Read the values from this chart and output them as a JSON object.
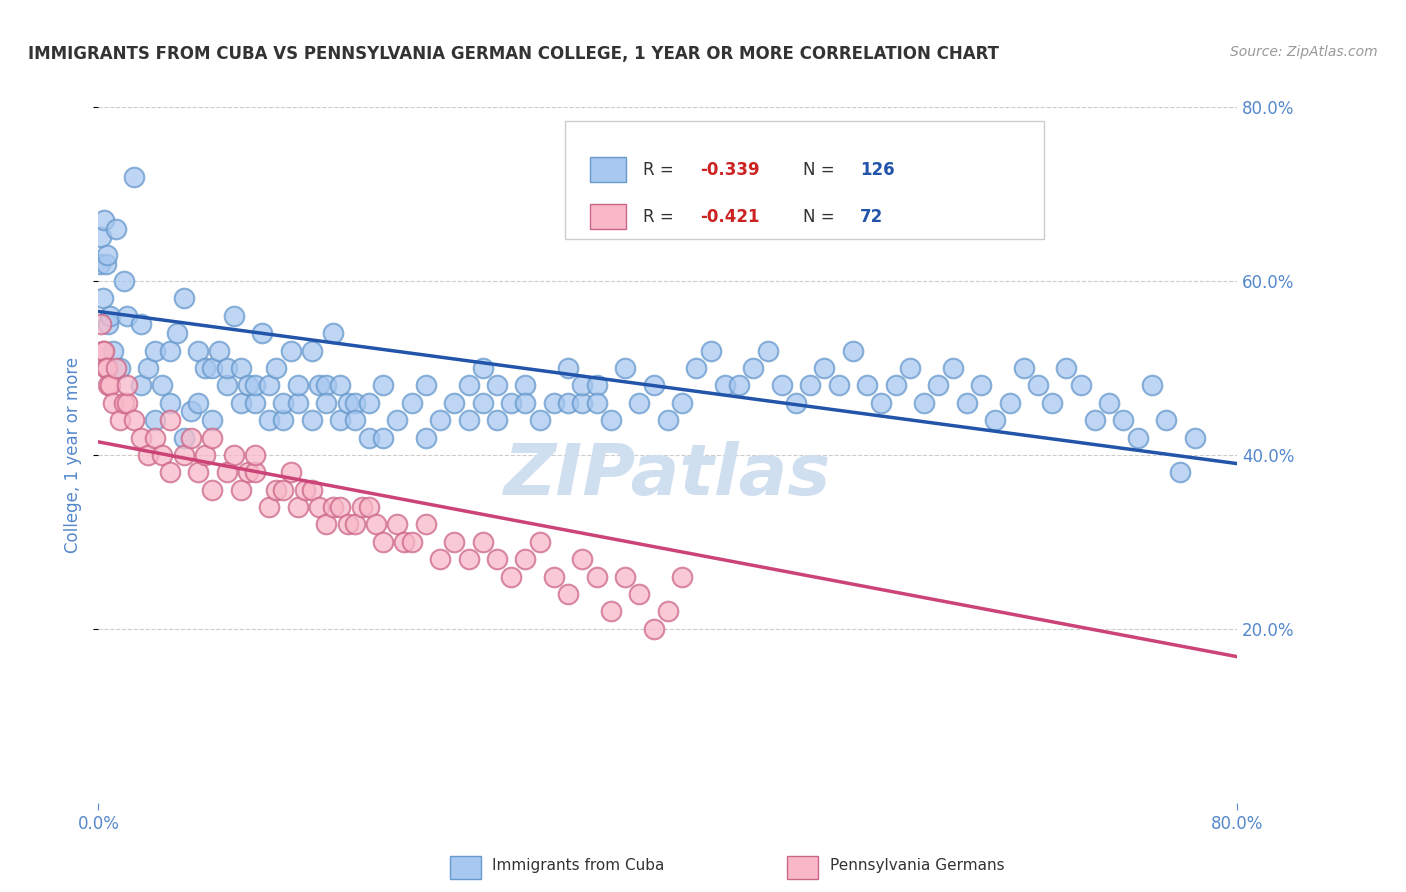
{
  "title": "IMMIGRANTS FROM CUBA VS PENNSYLVANIA GERMAN COLLEGE, 1 YEAR OR MORE CORRELATION CHART",
  "source_text": "Source: ZipAtlas.com",
  "ylabel": "College, 1 year or more",
  "xmin": 0.0,
  "xmax": 0.8,
  "ymin": 0.0,
  "ymax": 0.8,
  "watermark": "ZIPatlas",
  "blue_scatter": [
    [
      0.001,
      0.62
    ],
    [
      0.002,
      0.65
    ],
    [
      0.003,
      0.58
    ],
    [
      0.004,
      0.67
    ],
    [
      0.005,
      0.62
    ],
    [
      0.006,
      0.63
    ],
    [
      0.007,
      0.55
    ],
    [
      0.008,
      0.56
    ],
    [
      0.01,
      0.52
    ],
    [
      0.012,
      0.66
    ],
    [
      0.015,
      0.5
    ],
    [
      0.018,
      0.6
    ],
    [
      0.02,
      0.56
    ],
    [
      0.025,
      0.72
    ],
    [
      0.03,
      0.55
    ],
    [
      0.03,
      0.48
    ],
    [
      0.035,
      0.5
    ],
    [
      0.04,
      0.52
    ],
    [
      0.04,
      0.44
    ],
    [
      0.045,
      0.48
    ],
    [
      0.05,
      0.52
    ],
    [
      0.05,
      0.46
    ],
    [
      0.055,
      0.54
    ],
    [
      0.06,
      0.58
    ],
    [
      0.06,
      0.42
    ],
    [
      0.065,
      0.45
    ],
    [
      0.07,
      0.52
    ],
    [
      0.07,
      0.46
    ],
    [
      0.075,
      0.5
    ],
    [
      0.08,
      0.5
    ],
    [
      0.08,
      0.44
    ],
    [
      0.085,
      0.52
    ],
    [
      0.09,
      0.48
    ],
    [
      0.09,
      0.5
    ],
    [
      0.095,
      0.56
    ],
    [
      0.1,
      0.5
    ],
    [
      0.1,
      0.46
    ],
    [
      0.105,
      0.48
    ],
    [
      0.11,
      0.46
    ],
    [
      0.11,
      0.48
    ],
    [
      0.115,
      0.54
    ],
    [
      0.12,
      0.48
    ],
    [
      0.12,
      0.44
    ],
    [
      0.125,
      0.5
    ],
    [
      0.13,
      0.44
    ],
    [
      0.13,
      0.46
    ],
    [
      0.135,
      0.52
    ],
    [
      0.14,
      0.46
    ],
    [
      0.14,
      0.48
    ],
    [
      0.15,
      0.52
    ],
    [
      0.15,
      0.44
    ],
    [
      0.155,
      0.48
    ],
    [
      0.16,
      0.48
    ],
    [
      0.16,
      0.46
    ],
    [
      0.165,
      0.54
    ],
    [
      0.17,
      0.44
    ],
    [
      0.17,
      0.48
    ],
    [
      0.175,
      0.46
    ],
    [
      0.18,
      0.46
    ],
    [
      0.18,
      0.44
    ],
    [
      0.19,
      0.42
    ],
    [
      0.19,
      0.46
    ],
    [
      0.2,
      0.48
    ],
    [
      0.2,
      0.42
    ],
    [
      0.21,
      0.44
    ],
    [
      0.22,
      0.46
    ],
    [
      0.23,
      0.42
    ],
    [
      0.23,
      0.48
    ],
    [
      0.24,
      0.44
    ],
    [
      0.25,
      0.46
    ],
    [
      0.26,
      0.48
    ],
    [
      0.26,
      0.44
    ],
    [
      0.27,
      0.5
    ],
    [
      0.27,
      0.46
    ],
    [
      0.28,
      0.44
    ],
    [
      0.28,
      0.48
    ],
    [
      0.29,
      0.46
    ],
    [
      0.3,
      0.48
    ],
    [
      0.3,
      0.46
    ],
    [
      0.31,
      0.44
    ],
    [
      0.32,
      0.46
    ],
    [
      0.33,
      0.5
    ],
    [
      0.33,
      0.46
    ],
    [
      0.34,
      0.46
    ],
    [
      0.34,
      0.48
    ],
    [
      0.35,
      0.48
    ],
    [
      0.35,
      0.46
    ],
    [
      0.36,
      0.44
    ],
    [
      0.37,
      0.5
    ],
    [
      0.38,
      0.46
    ],
    [
      0.39,
      0.48
    ],
    [
      0.4,
      0.44
    ],
    [
      0.41,
      0.46
    ],
    [
      0.42,
      0.5
    ],
    [
      0.43,
      0.52
    ],
    [
      0.44,
      0.48
    ],
    [
      0.45,
      0.48
    ],
    [
      0.46,
      0.5
    ],
    [
      0.47,
      0.52
    ],
    [
      0.48,
      0.48
    ],
    [
      0.49,
      0.46
    ],
    [
      0.5,
      0.48
    ],
    [
      0.51,
      0.5
    ],
    [
      0.52,
      0.48
    ],
    [
      0.53,
      0.52
    ],
    [
      0.54,
      0.48
    ],
    [
      0.55,
      0.46
    ],
    [
      0.56,
      0.48
    ],
    [
      0.57,
      0.5
    ],
    [
      0.58,
      0.46
    ],
    [
      0.59,
      0.48
    ],
    [
      0.6,
      0.5
    ],
    [
      0.61,
      0.46
    ],
    [
      0.62,
      0.48
    ],
    [
      0.63,
      0.44
    ],
    [
      0.64,
      0.46
    ],
    [
      0.65,
      0.5
    ],
    [
      0.66,
      0.48
    ],
    [
      0.67,
      0.46
    ],
    [
      0.68,
      0.5
    ],
    [
      0.69,
      0.48
    ],
    [
      0.7,
      0.44
    ],
    [
      0.71,
      0.46
    ],
    [
      0.72,
      0.44
    ],
    [
      0.73,
      0.42
    ],
    [
      0.74,
      0.48
    ],
    [
      0.75,
      0.44
    ],
    [
      0.76,
      0.38
    ],
    [
      0.77,
      0.42
    ]
  ],
  "pink_scatter": [
    [
      0.002,
      0.55
    ],
    [
      0.003,
      0.52
    ],
    [
      0.004,
      0.52
    ],
    [
      0.005,
      0.5
    ],
    [
      0.006,
      0.5
    ],
    [
      0.007,
      0.48
    ],
    [
      0.008,
      0.48
    ],
    [
      0.01,
      0.46
    ],
    [
      0.012,
      0.5
    ],
    [
      0.015,
      0.44
    ],
    [
      0.018,
      0.46
    ],
    [
      0.02,
      0.46
    ],
    [
      0.02,
      0.48
    ],
    [
      0.025,
      0.44
    ],
    [
      0.03,
      0.42
    ],
    [
      0.035,
      0.4
    ],
    [
      0.04,
      0.42
    ],
    [
      0.045,
      0.4
    ],
    [
      0.05,
      0.38
    ],
    [
      0.05,
      0.44
    ],
    [
      0.06,
      0.4
    ],
    [
      0.065,
      0.42
    ],
    [
      0.07,
      0.38
    ],
    [
      0.075,
      0.4
    ],
    [
      0.08,
      0.36
    ],
    [
      0.08,
      0.42
    ],
    [
      0.09,
      0.38
    ],
    [
      0.095,
      0.4
    ],
    [
      0.1,
      0.36
    ],
    [
      0.105,
      0.38
    ],
    [
      0.11,
      0.38
    ],
    [
      0.11,
      0.4
    ],
    [
      0.12,
      0.34
    ],
    [
      0.125,
      0.36
    ],
    [
      0.13,
      0.36
    ],
    [
      0.135,
      0.38
    ],
    [
      0.14,
      0.34
    ],
    [
      0.145,
      0.36
    ],
    [
      0.15,
      0.36
    ],
    [
      0.155,
      0.34
    ],
    [
      0.16,
      0.32
    ],
    [
      0.165,
      0.34
    ],
    [
      0.17,
      0.34
    ],
    [
      0.175,
      0.32
    ],
    [
      0.18,
      0.32
    ],
    [
      0.185,
      0.34
    ],
    [
      0.19,
      0.34
    ],
    [
      0.195,
      0.32
    ],
    [
      0.2,
      0.3
    ],
    [
      0.21,
      0.32
    ],
    [
      0.215,
      0.3
    ],
    [
      0.22,
      0.3
    ],
    [
      0.23,
      0.32
    ],
    [
      0.24,
      0.28
    ],
    [
      0.25,
      0.3
    ],
    [
      0.26,
      0.28
    ],
    [
      0.27,
      0.3
    ],
    [
      0.28,
      0.28
    ],
    [
      0.29,
      0.26
    ],
    [
      0.3,
      0.28
    ],
    [
      0.31,
      0.3
    ],
    [
      0.32,
      0.26
    ],
    [
      0.33,
      0.24
    ],
    [
      0.34,
      0.28
    ],
    [
      0.35,
      0.26
    ],
    [
      0.36,
      0.22
    ],
    [
      0.37,
      0.26
    ],
    [
      0.38,
      0.24
    ],
    [
      0.39,
      0.2
    ],
    [
      0.4,
      0.22
    ],
    [
      0.41,
      0.26
    ]
  ],
  "blue_line": {
    "x0": 0.0,
    "y0": 0.565,
    "x1": 0.8,
    "y1": 0.39
  },
  "pink_line": {
    "x0": 0.0,
    "y0": 0.415,
    "x1": 0.8,
    "y1": 0.168
  },
  "blue_scatter_color": "#a8c8f0",
  "blue_scatter_edge": "#6699cc",
  "pink_scatter_color": "#f8b8c8",
  "pink_scatter_edge": "#cc6688",
  "blue_line_color": "#2255aa",
  "pink_line_color": "#cc4477",
  "grid_color": "#cccccc",
  "title_color": "#333333",
  "right_tick_color": "#5588cc",
  "bottom_tick_color": "#5588cc",
  "ylabel_color": "#5588cc",
  "legend_R_color": "#cc2222",
  "legend_N_color": "#2255aa",
  "legend_text_color": "#333333",
  "bg_color": "#ffffff",
  "watermark_color": "#d0dff0",
  "fig_width": 14.06,
  "fig_height": 8.92
}
